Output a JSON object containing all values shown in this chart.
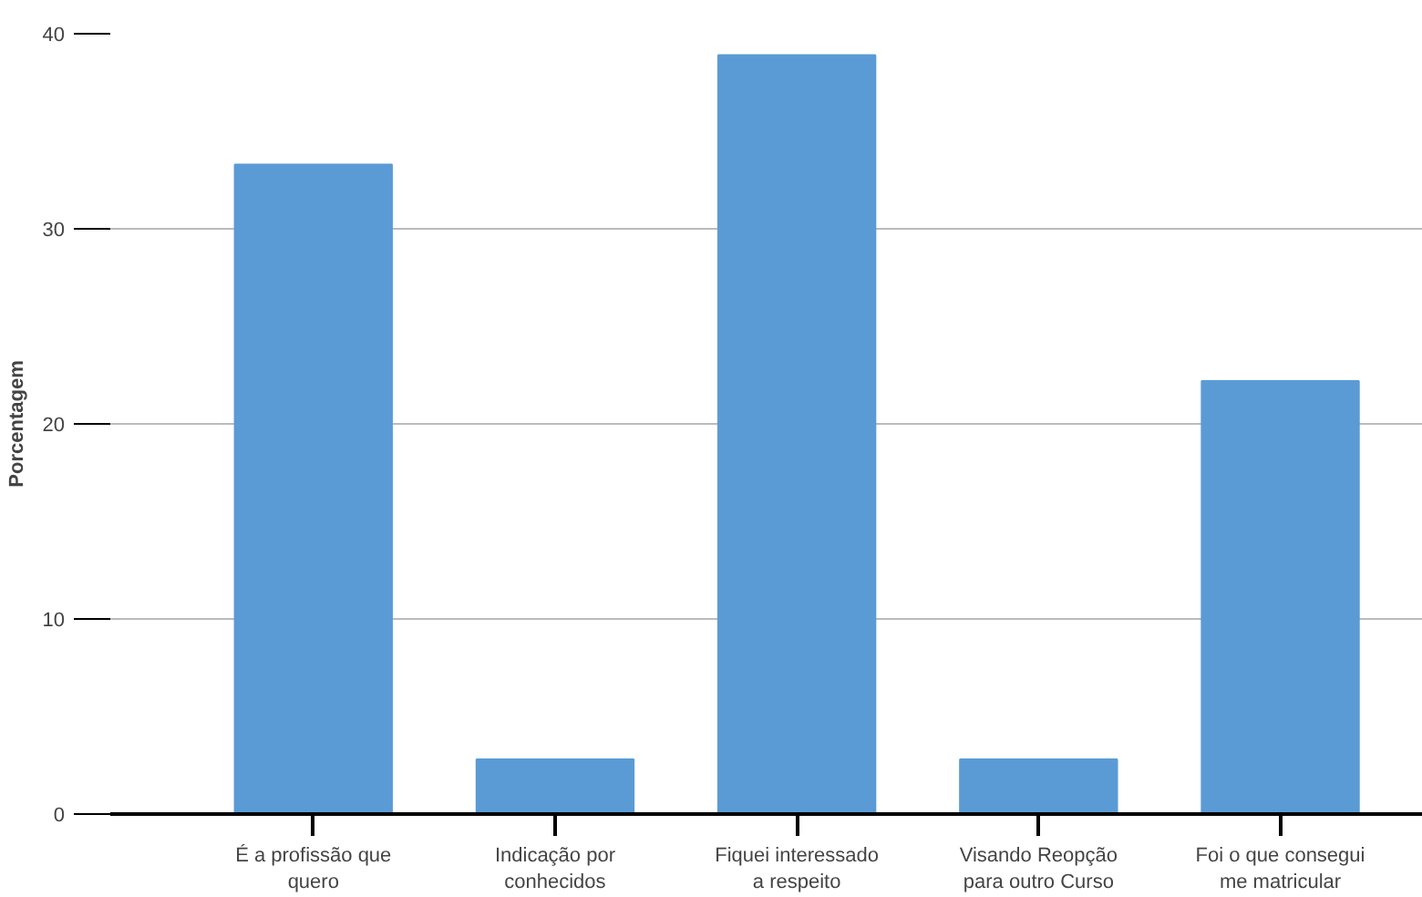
{
  "chart_data": {
    "type": "bar",
    "ylabel": "Porcentagem",
    "categories": [
      "É a profissão que quero",
      "Indicação por conhecidos",
      "Fiquei interessado a respeito",
      "Visando Reopção para outro Curso",
      "Foi o que consegui me matricular"
    ],
    "values": [
      33.3,
      2.8,
      38.9,
      2.8,
      22.2
    ],
    "color": "#5b9bd5",
    "ylim": [
      0,
      40
    ],
    "yticks": [
      0,
      10,
      20,
      30,
      40
    ],
    "grid": "y"
  }
}
